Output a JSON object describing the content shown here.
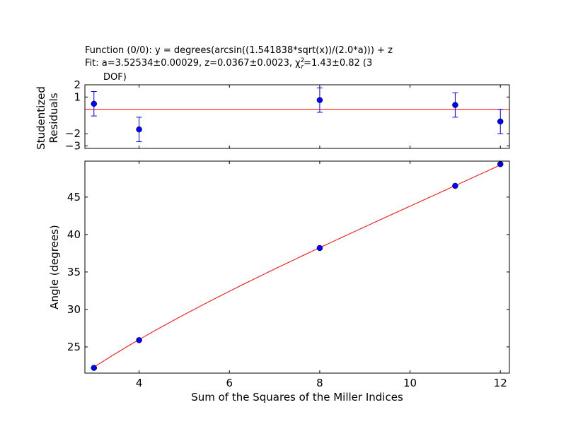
{
  "header": {
    "line1": "Function (0/0): y =  degrees(arcsin((1.541838*sqrt(x))/(2.0*a))) + z",
    "line2": "Fit: a=3.52534±0.00029, z=0.0367±0.0023, χ",
    "chi_sup": "2",
    "chi_sub": "r",
    "line2_tail": "=1.43±0.82 (3",
    "line3": "DOF)"
  },
  "chart_data": [
    {
      "type": "scatter",
      "panel": "residuals",
      "title": "",
      "xlabel": "",
      "ylabel": "Studentized Residuals",
      "ylabel_lines": [
        "Studentized",
        "Residuals"
      ],
      "xlim": [
        2.8,
        12.2
      ],
      "ylim": [
        -3.2,
        2.0
      ],
      "yticks": [
        2,
        1,
        -2,
        -3
      ],
      "ytick_labels": [
        "2",
        "1",
        "−2",
        "−3"
      ],
      "x": [
        3,
        4,
        8,
        11,
        12
      ],
      "y": [
        0.45,
        -1.65,
        0.75,
        0.35,
        -1.0
      ],
      "yerr": [
        1.0,
        1.0,
        1.0,
        1.0,
        1.0
      ],
      "reference_line": 0,
      "marker_color": "#0000ff",
      "line_color": "#ff0000"
    },
    {
      "type": "scatter",
      "panel": "main",
      "title": "",
      "xlabel": "Sum of the Squares of the Miller Indices",
      "ylabel": "Angle (degrees)",
      "xlim": [
        2.8,
        12.2
      ],
      "ylim": [
        21.5,
        49.8
      ],
      "xticks": [
        4,
        6,
        8,
        10,
        12
      ],
      "yticks": [
        25,
        30,
        35,
        40,
        45
      ],
      "x": [
        3,
        4,
        8,
        11,
        12
      ],
      "y": [
        22.2,
        25.9,
        38.2,
        46.5,
        49.4
      ],
      "fit": {
        "function": "degrees(arcsin((1.541838*sqrt(x))/(2.0*a))) + z",
        "a": 3.52534,
        "z": 0.0367
      },
      "marker_color": "#0000ff",
      "line_color": "#ff0000"
    }
  ]
}
